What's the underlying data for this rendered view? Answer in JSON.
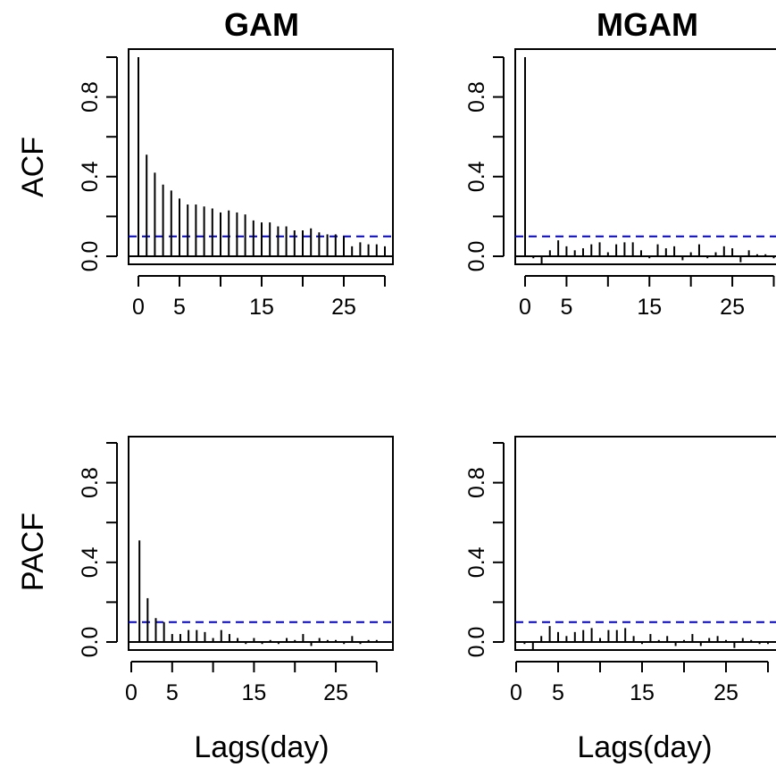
{
  "figure": {
    "col_titles": [
      "GAM",
      "MGAM"
    ],
    "row_labels": [
      "ACF",
      "PACF"
    ],
    "xlabel": "Lags(day)",
    "colors": {
      "bars": "#000000",
      "confidence_line": "#0000cc",
      "frame": "#000000"
    }
  },
  "chart_data": [
    {
      "type": "bar",
      "panel": "GAM ACF",
      "title": "GAM",
      "ylabel": "ACF",
      "xlabel": "",
      "x": [
        0,
        1,
        2,
        3,
        4,
        5,
        6,
        7,
        8,
        9,
        10,
        11,
        12,
        13,
        14,
        15,
        16,
        17,
        18,
        19,
        20,
        21,
        22,
        23,
        24,
        25,
        26,
        27,
        28,
        29,
        30
      ],
      "values": [
        1.0,
        0.51,
        0.42,
        0.36,
        0.33,
        0.29,
        0.26,
        0.26,
        0.25,
        0.24,
        0.22,
        0.23,
        0.22,
        0.21,
        0.18,
        0.17,
        0.17,
        0.15,
        0.15,
        0.13,
        0.13,
        0.14,
        0.12,
        0.11,
        0.11,
        0.1,
        0.05,
        0.07,
        0.06,
        0.06,
        0.05
      ],
      "conf_limit": 0.1,
      "xlim": [
        0,
        30
      ],
      "ylim": [
        -0.05,
        1.02
      ],
      "xticks": [
        "0",
        "5",
        "15",
        "25"
      ],
      "xtick_values": [
        0,
        5,
        15,
        25
      ],
      "yticks": [
        "0.0",
        "0.4",
        "0.8"
      ],
      "ytick_values": [
        0,
        0.4,
        0.8
      ],
      "grid": false
    },
    {
      "type": "bar",
      "panel": "MGAM ACF",
      "title": "MGAM",
      "ylabel": "",
      "xlabel": "",
      "x": [
        0,
        1,
        2,
        3,
        4,
        5,
        6,
        7,
        8,
        9,
        10,
        11,
        12,
        13,
        14,
        15,
        16,
        17,
        18,
        19,
        20,
        21,
        22,
        23,
        24,
        25,
        26,
        27,
        28,
        29,
        30
      ],
      "values": [
        1.0,
        -0.01,
        -0.04,
        0.03,
        0.08,
        0.05,
        0.03,
        0.04,
        0.06,
        0.07,
        0.02,
        0.06,
        0.07,
        0.07,
        0.03,
        -0.01,
        0.06,
        0.04,
        0.05,
        -0.02,
        0.02,
        0.06,
        -0.01,
        0.02,
        0.05,
        0.04,
        -0.03,
        0.03,
        0.01,
        0.01,
        -0.01
      ],
      "conf_limit": 0.1,
      "xlim": [
        0,
        30
      ],
      "ylim": [
        -0.05,
        1.02
      ],
      "xticks": [
        "0",
        "5",
        "15",
        "25"
      ],
      "xtick_values": [
        0,
        5,
        15,
        25
      ],
      "yticks": [
        "0.0",
        "0.4",
        "0.8"
      ],
      "ytick_values": [
        0,
        0.4,
        0.8
      ],
      "grid": false
    },
    {
      "type": "bar",
      "panel": "GAM PACF",
      "title": "",
      "ylabel": "PACF",
      "xlabel": "Lags(day)",
      "x": [
        1,
        2,
        3,
        4,
        5,
        6,
        7,
        8,
        9,
        10,
        11,
        12,
        13,
        14,
        15,
        16,
        17,
        18,
        19,
        20,
        21,
        22,
        23,
        24,
        25,
        26,
        27,
        28,
        29,
        30
      ],
      "values": [
        0.51,
        0.22,
        0.12,
        0.1,
        0.04,
        0.04,
        0.06,
        0.06,
        0.05,
        0.02,
        0.06,
        0.04,
        0.02,
        -0.01,
        0.02,
        -0.01,
        0.01,
        -0.01,
        0.02,
        0.01,
        0.04,
        -0.02,
        0.02,
        0.01,
        0.01,
        -0.01,
        0.03,
        -0.01,
        0.01,
        0.01
      ],
      "conf_limit": 0.1,
      "xlim": [
        1,
        30
      ],
      "ylim": [
        -0.05,
        1.02
      ],
      "xticks": [
        "0",
        "5",
        "15",
        "25"
      ],
      "xtick_values": [
        0,
        5,
        15,
        25
      ],
      "yticks": [
        "0.0",
        "0.4",
        "0.8"
      ],
      "ytick_values": [
        0,
        0.4,
        0.8
      ],
      "grid": false
    },
    {
      "type": "bar",
      "panel": "MGAM PACF",
      "title": "",
      "ylabel": "",
      "xlabel": "Lags(day)",
      "x": [
        1,
        2,
        3,
        4,
        5,
        6,
        7,
        8,
        9,
        10,
        11,
        12,
        13,
        14,
        15,
        16,
        17,
        18,
        19,
        20,
        21,
        22,
        23,
        24,
        25,
        26,
        27,
        28,
        29,
        30
      ],
      "values": [
        -0.01,
        -0.04,
        0.03,
        0.08,
        0.05,
        0.03,
        0.05,
        0.06,
        0.07,
        0.02,
        0.06,
        0.06,
        0.07,
        0.03,
        -0.01,
        0.04,
        0.01,
        0.03,
        -0.02,
        0.01,
        0.04,
        -0.02,
        0.02,
        0.03,
        0.01,
        -0.03,
        0.02,
        0.01,
        -0.01,
        -0.01
      ],
      "conf_limit": 0.1,
      "xlim": [
        0,
        30
      ],
      "ylim": [
        -0.05,
        1.02
      ],
      "xticks": [
        "0",
        "5",
        "15",
        "25"
      ],
      "xtick_values": [
        0,
        5,
        15,
        25
      ],
      "yticks": [
        "0.0",
        "0.4",
        "0.8"
      ],
      "ytick_values": [
        0,
        0.4,
        0.8
      ],
      "grid": false
    }
  ]
}
